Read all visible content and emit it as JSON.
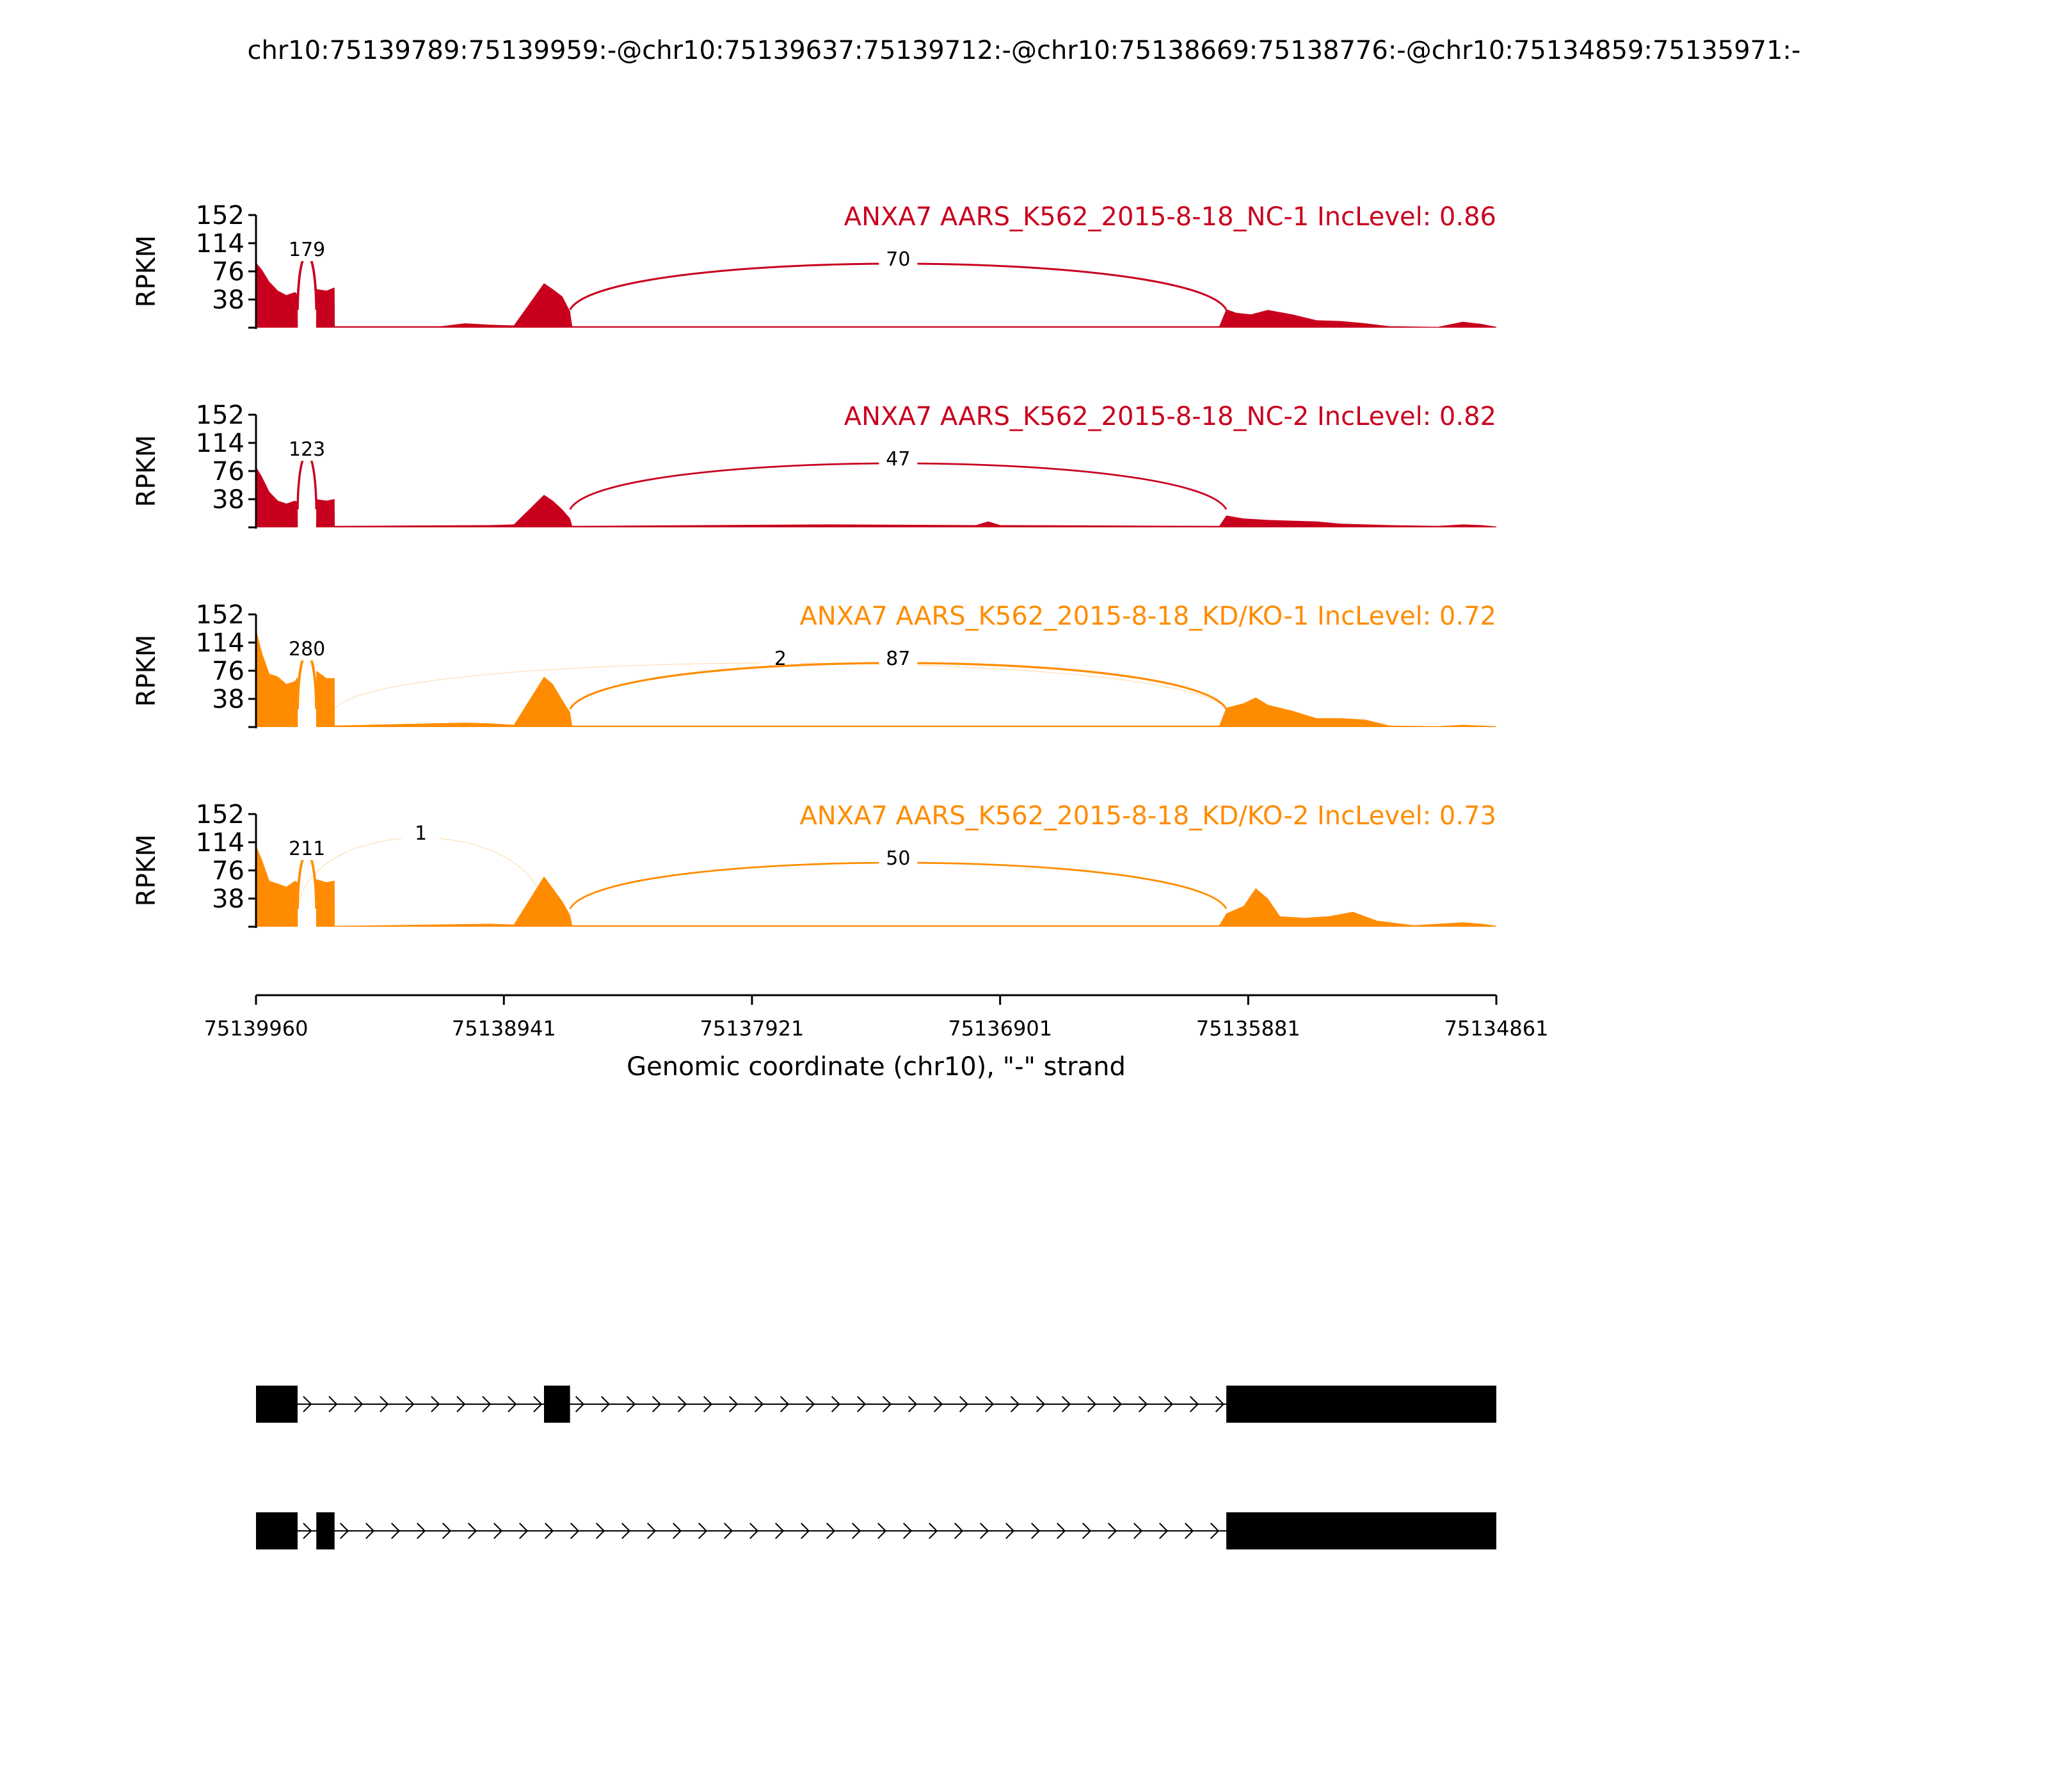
{
  "chart_data": {
    "type": "area",
    "title": "chr10:75139789:75139959:-@chr10:75139637:75139712:-@chr10:75138669:75138776:-@chr10:75134859:75135971:-",
    "xlabel": "Genomic coordinate (chr10), \"-\" strand",
    "ylabel": "RPKM",
    "xlim": [
      75139960,
      75134861
    ],
    "ylim": [
      0,
      152
    ],
    "x_ticks": [
      "75139960",
      "75138941",
      "75137921",
      "75136901",
      "75135881",
      "75134861"
    ],
    "y_ticks": [
      "152",
      "114",
      "76",
      "38"
    ],
    "panels": [
      {
        "label": "ANXA7 AARS_K562_2015-8-18_NC-1 IncLevel: 0.86",
        "color": "#c8001e",
        "junctions": [
          {
            "from": 75139789,
            "to": 75139712,
            "count": "179",
            "weight": 179
          },
          {
            "from": 75138669,
            "to": 75135971,
            "count": "70",
            "weight": 70
          }
        ],
        "coverage": [
          {
            "x": 75139960,
            "y": 88
          },
          {
            "x": 75139935,
            "y": 78
          },
          {
            "x": 75139905,
            "y": 62
          },
          {
            "x": 75139870,
            "y": 50
          },
          {
            "x": 75139835,
            "y": 44
          },
          {
            "x": 75139800,
            "y": 48
          },
          {
            "x": 75139789,
            "y": 45
          },
          {
            "x": 75139788,
            "y": 0
          },
          {
            "x": 75139713,
            "y": 0
          },
          {
            "x": 75139712,
            "y": 52
          },
          {
            "x": 75139670,
            "y": 50
          },
          {
            "x": 75139640,
            "y": 54
          },
          {
            "x": 75139637,
            "y": 54
          },
          {
            "x": 75139636,
            "y": 2
          },
          {
            "x": 75139200,
            "y": 2
          },
          {
            "x": 75139100,
            "y": 6
          },
          {
            "x": 75139000,
            "y": 4
          },
          {
            "x": 75138900,
            "y": 3
          },
          {
            "x": 75138776,
            "y": 60
          },
          {
            "x": 75138740,
            "y": 52
          },
          {
            "x": 75138700,
            "y": 42
          },
          {
            "x": 75138669,
            "y": 22
          },
          {
            "x": 75138660,
            "y": 2
          },
          {
            "x": 75136000,
            "y": 2
          },
          {
            "x": 75135971,
            "y": 25
          },
          {
            "x": 75135930,
            "y": 20
          },
          {
            "x": 75135870,
            "y": 18
          },
          {
            "x": 75135800,
            "y": 24
          },
          {
            "x": 75135700,
            "y": 18
          },
          {
            "x": 75135600,
            "y": 10
          },
          {
            "x": 75135500,
            "y": 9
          },
          {
            "x": 75135400,
            "y": 6
          },
          {
            "x": 75135300,
            "y": 2
          },
          {
            "x": 75135100,
            "y": 1
          },
          {
            "x": 75135000,
            "y": 8
          },
          {
            "x": 75134920,
            "y": 5
          },
          {
            "x": 75134861,
            "y": 1
          }
        ]
      },
      {
        "label": "ANXA7 AARS_K562_2015-8-18_NC-2 IncLevel: 0.82",
        "color": "#c8001e",
        "junctions": [
          {
            "from": 75139789,
            "to": 75139712,
            "count": "123",
            "weight": 123
          },
          {
            "from": 75138669,
            "to": 75135971,
            "count": "47",
            "weight": 47
          }
        ],
        "coverage": [
          {
            "x": 75139960,
            "y": 82
          },
          {
            "x": 75139935,
            "y": 68
          },
          {
            "x": 75139905,
            "y": 48
          },
          {
            "x": 75139870,
            "y": 36
          },
          {
            "x": 75139835,
            "y": 32
          },
          {
            "x": 75139800,
            "y": 36
          },
          {
            "x": 75139789,
            "y": 34
          },
          {
            "x": 75139788,
            "y": 0
          },
          {
            "x": 75139713,
            "y": 0
          },
          {
            "x": 75139712,
            "y": 38
          },
          {
            "x": 75139670,
            "y": 36
          },
          {
            "x": 75139640,
            "y": 38
          },
          {
            "x": 75139637,
            "y": 38
          },
          {
            "x": 75139636,
            "y": 2
          },
          {
            "x": 75139000,
            "y": 3
          },
          {
            "x": 75138900,
            "y": 4
          },
          {
            "x": 75138776,
            "y": 44
          },
          {
            "x": 75138740,
            "y": 36
          },
          {
            "x": 75138700,
            "y": 24
          },
          {
            "x": 75138669,
            "y": 12
          },
          {
            "x": 75138660,
            "y": 2
          },
          {
            "x": 75137600,
            "y": 4
          },
          {
            "x": 75137000,
            "y": 3
          },
          {
            "x": 75136950,
            "y": 8
          },
          {
            "x": 75136900,
            "y": 3
          },
          {
            "x": 75136000,
            "y": 2
          },
          {
            "x": 75135971,
            "y": 16
          },
          {
            "x": 75135900,
            "y": 12
          },
          {
            "x": 75135800,
            "y": 10
          },
          {
            "x": 75135700,
            "y": 9
          },
          {
            "x": 75135600,
            "y": 8
          },
          {
            "x": 75135500,
            "y": 5
          },
          {
            "x": 75135300,
            "y": 3
          },
          {
            "x": 75135100,
            "y": 2
          },
          {
            "x": 75135000,
            "y": 4
          },
          {
            "x": 75134920,
            "y": 3
          },
          {
            "x": 75134861,
            "y": 1
          }
        ]
      },
      {
        "label": "ANXA7 AARS_K562_2015-8-18_KD/KO-1 IncLevel: 0.72",
        "color": "#ff8c00",
        "junctions": [
          {
            "from": 75139789,
            "to": 75139712,
            "count": "280",
            "weight": 280
          },
          {
            "from": 75139637,
            "to": 75135971,
            "count": "2",
            "weight": 2
          },
          {
            "from": 75138669,
            "to": 75135971,
            "count": "87",
            "weight": 87
          }
        ],
        "coverage": [
          {
            "x": 75139960,
            "y": 132
          },
          {
            "x": 75139935,
            "y": 100
          },
          {
            "x": 75139905,
            "y": 72
          },
          {
            "x": 75139870,
            "y": 68
          },
          {
            "x": 75139835,
            "y": 58
          },
          {
            "x": 75139800,
            "y": 62
          },
          {
            "x": 75139789,
            "y": 68
          },
          {
            "x": 75139788,
            "y": 0
          },
          {
            "x": 75139713,
            "y": 0
          },
          {
            "x": 75139712,
            "y": 76
          },
          {
            "x": 75139670,
            "y": 66
          },
          {
            "x": 75139640,
            "y": 66
          },
          {
            "x": 75139637,
            "y": 66
          },
          {
            "x": 75139636,
            "y": 2
          },
          {
            "x": 75139100,
            "y": 6
          },
          {
            "x": 75139000,
            "y": 5
          },
          {
            "x": 75138900,
            "y": 3
          },
          {
            "x": 75138776,
            "y": 68
          },
          {
            "x": 75138740,
            "y": 58
          },
          {
            "x": 75138700,
            "y": 36
          },
          {
            "x": 75138669,
            "y": 20
          },
          {
            "x": 75138660,
            "y": 2
          },
          {
            "x": 75136000,
            "y": 2
          },
          {
            "x": 75135971,
            "y": 26
          },
          {
            "x": 75135900,
            "y": 32
          },
          {
            "x": 75135850,
            "y": 40
          },
          {
            "x": 75135800,
            "y": 30
          },
          {
            "x": 75135700,
            "y": 22
          },
          {
            "x": 75135600,
            "y": 12
          },
          {
            "x": 75135500,
            "y": 12
          },
          {
            "x": 75135400,
            "y": 10
          },
          {
            "x": 75135300,
            "y": 2
          },
          {
            "x": 75135100,
            "y": 1
          },
          {
            "x": 75135000,
            "y": 3
          },
          {
            "x": 75134861,
            "y": 1
          }
        ]
      },
      {
        "label": "ANXA7 AARS_K562_2015-8-18_KD/KO-2 IncLevel: 0.73",
        "color": "#ff8c00",
        "junctions": [
          {
            "from": 75139789,
            "to": 75139712,
            "count": "211",
            "weight": 211
          },
          {
            "from": 75139789,
            "to": 75138776,
            "count": "1",
            "weight": 1
          },
          {
            "from": 75138669,
            "to": 75135971,
            "count": "50",
            "weight": 50
          }
        ],
        "coverage": [
          {
            "x": 75139960,
            "y": 110
          },
          {
            "x": 75139935,
            "y": 90
          },
          {
            "x": 75139905,
            "y": 62
          },
          {
            "x": 75139870,
            "y": 58
          },
          {
            "x": 75139835,
            "y": 54
          },
          {
            "x": 75139800,
            "y": 62
          },
          {
            "x": 75139789,
            "y": 60
          },
          {
            "x": 75139788,
            "y": 0
          },
          {
            "x": 75139713,
            "y": 0
          },
          {
            "x": 75139712,
            "y": 64
          },
          {
            "x": 75139670,
            "y": 60
          },
          {
            "x": 75139640,
            "y": 62
          },
          {
            "x": 75139637,
            "y": 62
          },
          {
            "x": 75139636,
            "y": 1
          },
          {
            "x": 75139000,
            "y": 4
          },
          {
            "x": 75138900,
            "y": 3
          },
          {
            "x": 75138776,
            "y": 68
          },
          {
            "x": 75138740,
            "y": 52
          },
          {
            "x": 75138700,
            "y": 34
          },
          {
            "x": 75138669,
            "y": 16
          },
          {
            "x": 75138660,
            "y": 2
          },
          {
            "x": 75136000,
            "y": 2
          },
          {
            "x": 75135971,
            "y": 18
          },
          {
            "x": 75135900,
            "y": 28
          },
          {
            "x": 75135850,
            "y": 52
          },
          {
            "x": 75135800,
            "y": 38
          },
          {
            "x": 75135750,
            "y": 14
          },
          {
            "x": 75135650,
            "y": 12
          },
          {
            "x": 75135550,
            "y": 14
          },
          {
            "x": 75135450,
            "y": 20
          },
          {
            "x": 75135350,
            "y": 8
          },
          {
            "x": 75135200,
            "y": 2
          },
          {
            "x": 75135000,
            "y": 6
          },
          {
            "x": 75134920,
            "y": 4
          },
          {
            "x": 75134861,
            "y": 1
          }
        ]
      }
    ],
    "transcripts": [
      {
        "exons": [
          [
            75139960,
            75139789
          ],
          [
            75138776,
            75138669
          ],
          [
            75135971,
            75134861
          ]
        ]
      },
      {
        "exons": [
          [
            75139960,
            75139789
          ],
          [
            75139712,
            75139637
          ],
          [
            75135971,
            75134861
          ]
        ]
      }
    ]
  }
}
